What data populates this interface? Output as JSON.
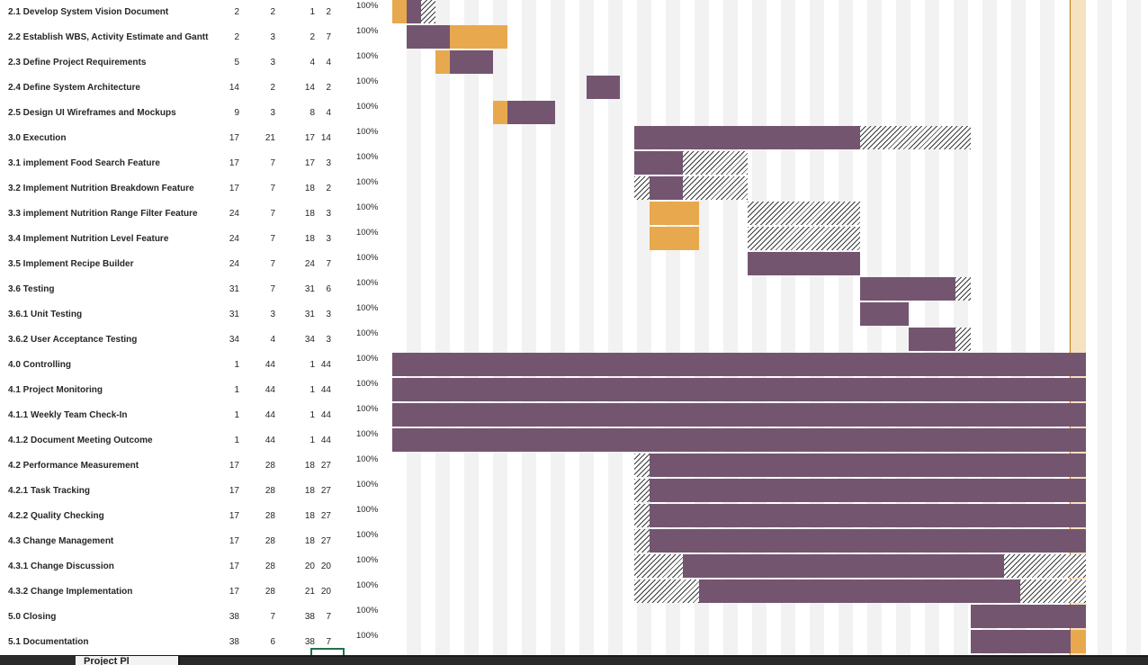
{
  "sheet_tab": "Project Pl",
  "tasks": [
    {
      "name": "2.1 Develop System Vision Document",
      "v": [
        "2",
        "2",
        "1",
        "2"
      ],
      "pct": "100%"
    },
    {
      "name": "2.2 Establish WBS, Activity Estimate and Gantt",
      "v": [
        "2",
        "3",
        "2",
        "7"
      ],
      "pct": "100%"
    },
    {
      "name": "2.3 Define Project Requirements",
      "v": [
        "5",
        "3",
        "4",
        "4"
      ],
      "pct": "100%"
    },
    {
      "name": "2.4 Define System Architecture",
      "v": [
        "14",
        "2",
        "14",
        "2"
      ],
      "pct": "100%"
    },
    {
      "name": "2.5 Design UI Wireframes and Mockups",
      "v": [
        "9",
        "3",
        "8",
        "4"
      ],
      "pct": "100%"
    },
    {
      "name": "3.0 Execution",
      "v": [
        "17",
        "21",
        "17",
        "14"
      ],
      "pct": "100%"
    },
    {
      "name": "3.1 implement Food Search Feature",
      "v": [
        "17",
        "7",
        "17",
        "3"
      ],
      "pct": "100%"
    },
    {
      "name": "3.2 Implement Nutrition Breakdown Feature",
      "v": [
        "17",
        "7",
        "18",
        "2"
      ],
      "pct": "100%"
    },
    {
      "name": "3.3 implement Nutrition Range Filter Feature",
      "v": [
        "24",
        "7",
        "18",
        "3"
      ],
      "pct": "100%"
    },
    {
      "name": "3.4 Implement Nutrition Level Feature",
      "v": [
        "24",
        "7",
        "18",
        "3"
      ],
      "pct": "100%"
    },
    {
      "name": "3.5 Implement Recipe Builder",
      "v": [
        "24",
        "7",
        "24",
        "7"
      ],
      "pct": "100%"
    },
    {
      "name": "3.6 Testing",
      "v": [
        "31",
        "7",
        "31",
        "6"
      ],
      "pct": "100%"
    },
    {
      "name": "3.6.1 Unit Testing",
      "v": [
        "31",
        "3",
        "31",
        "3"
      ],
      "pct": "100%"
    },
    {
      "name": "3.6.2 User Acceptance Testing",
      "v": [
        "34",
        "4",
        "34",
        "3"
      ],
      "pct": "100%"
    },
    {
      "name": "4.0 Controlling",
      "v": [
        "1",
        "44",
        "1",
        "44"
      ],
      "pct": "100%"
    },
    {
      "name": "4.1 Project Monitoring",
      "v": [
        "1",
        "44",
        "1",
        "44"
      ],
      "pct": "100%"
    },
    {
      "name": "4.1.1 Weekly Team Check-In",
      "v": [
        "1",
        "44",
        "1",
        "44"
      ],
      "pct": "100%"
    },
    {
      "name": "4.1.2 Document Meeting Outcome",
      "v": [
        "1",
        "44",
        "1",
        "44"
      ],
      "pct": "100%"
    },
    {
      "name": "4.2 Performance Measurement",
      "v": [
        "17",
        "28",
        "18",
        "27"
      ],
      "pct": "100%"
    },
    {
      "name": "4.2.1 Task Tracking",
      "v": [
        "17",
        "28",
        "18",
        "27"
      ],
      "pct": "100%"
    },
    {
      "name": "4.2.2 Quality Checking",
      "v": [
        "17",
        "28",
        "18",
        "27"
      ],
      "pct": "100%"
    },
    {
      "name": "4.3 Change Management",
      "v": [
        "17",
        "28",
        "18",
        "27"
      ],
      "pct": "100%"
    },
    {
      "name": "4.3.1 Change Discussion",
      "v": [
        "17",
        "28",
        "20",
        "20"
      ],
      "pct": "100%"
    },
    {
      "name": "4.3.2 Change Implementation",
      "v": [
        "17",
        "28",
        "21",
        "20"
      ],
      "pct": "100%"
    },
    {
      "name": "5.0 Closing",
      "v": [
        "38",
        "7",
        "38",
        "7"
      ],
      "pct": "100%"
    },
    {
      "name": "5.1 Documentation",
      "v": [
        "38",
        "6",
        "38",
        "7"
      ],
      "pct": "100%"
    }
  ],
  "legend_colors": {
    "plan": "#745570",
    "actual": "#e8a94e",
    "today": "#f6e1c0"
  }
}
